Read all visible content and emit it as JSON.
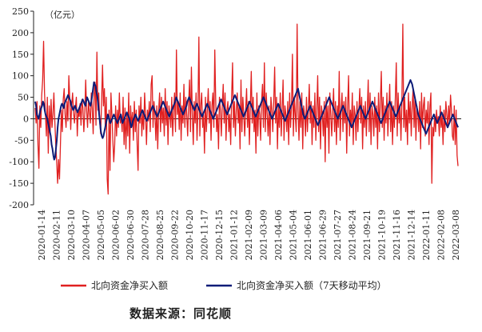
{
  "chart_data": {
    "type": "line",
    "unit_label": "（亿元）",
    "ylim": [
      -200,
      250
    ],
    "y_ticks": [
      250,
      200,
      150,
      100,
      50,
      0,
      -50,
      -100,
      -150,
      -200
    ],
    "x_tick_labels": [
      "2020-01-14",
      "2020-02-11",
      "2020-03-10",
      "2020-04-07",
      "2020-05-05",
      "2020-06-02",
      "2020-06-30",
      "2020-07-28",
      "2020-08-25",
      "2020-09-22",
      "2020-10-20",
      "2020-11-17",
      "2020-12-15",
      "2021-01-12",
      "2021-02-09",
      "2021-03-09",
      "2021-04-06",
      "2021-05-04",
      "2021-06-01",
      "2021-06-29",
      "2021-07-27",
      "2021-08-24",
      "2021-09-21",
      "2021-10-19",
      "2021-11-16",
      "2021-12-14",
      "2022-01-11",
      "2022-02-08",
      "2022-03-08"
    ],
    "grid": false,
    "legend_position": "bottom",
    "series": [
      {
        "name": "北向资金净买入额",
        "color": "#e02020",
        "x_start": "2020-01-14",
        "x_end": "2022-03-08",
        "values": [
          25,
          -10,
          40,
          -60,
          -115,
          30,
          -20,
          55,
          90,
          180,
          60,
          10,
          -40,
          50,
          -80,
          30,
          -30,
          45,
          -20,
          10,
          60,
          -5,
          -60,
          -100,
          -150,
          -95,
          -140,
          -60,
          20,
          -30,
          45,
          70,
          10,
          -20,
          40,
          -5,
          100,
          45,
          -25,
          30,
          60,
          15,
          -10,
          25,
          50,
          -40,
          20,
          5,
          35,
          -15,
          45,
          25,
          -30,
          10,
          90,
          20,
          -20,
          40,
          15,
          -10,
          60,
          25,
          -35,
          55,
          85,
          -15,
          155,
          20,
          60,
          -5,
          -35,
          40,
          125,
          30,
          70,
          -25,
          50,
          -140,
          -175,
          20,
          -120,
          60,
          10,
          -50,
          -100,
          -60,
          30,
          -40,
          20,
          -20,
          60,
          -10,
          5,
          -30,
          50,
          -60,
          25,
          -70,
          10,
          -40,
          60,
          -80,
          30,
          -20,
          15,
          -50,
          40,
          -30,
          20,
          -60,
          -120,
          30,
          -10,
          50,
          -40,
          15,
          -25,
          60,
          10,
          -60,
          20,
          -5,
          40,
          -30,
          80,
          100,
          -20,
          40,
          10,
          -50,
          30,
          -70,
          20,
          60,
          -30,
          50,
          -10,
          25,
          -40,
          70,
          -15,
          40,
          -60,
          30,
          10,
          -20,
          50,
          -40,
          20,
          60,
          -30,
          160,
          10,
          40,
          -25,
          60,
          -50,
          30,
          -10,
          80,
          -20,
          50,
          10,
          -40,
          30,
          90,
          -30,
          120,
          10,
          -60,
          40,
          -10,
          60,
          -50,
          20,
          190,
          -40,
          30,
          60,
          -20,
          10,
          -80,
          50,
          -30,
          20,
          70,
          -10,
          40,
          -50,
          30,
          60,
          -20,
          160,
          40,
          -30,
          10,
          -70,
          50,
          20,
          -40,
          30,
          80,
          -10,
          60,
          -50,
          20,
          40,
          -30,
          10,
          -60,
          50,
          130,
          -20,
          40,
          -40,
          20,
          60,
          -10,
          30,
          -70,
          90,
          -30,
          50,
          10,
          -40,
          20,
          70,
          -20,
          40,
          -60,
          30,
          110,
          -10,
          50,
          -30,
          20,
          -80,
          60,
          -40,
          30,
          10,
          -50,
          40,
          80,
          -20,
          130,
          -30,
          60,
          10,
          -40,
          30,
          -60,
          50,
          20,
          -30,
          40,
          120,
          -10,
          50,
          -70,
          30,
          -20,
          60,
          -40,
          20,
          90,
          -50,
          30,
          10,
          -30,
          40,
          -60,
          60,
          -20,
          30,
          150,
          -40,
          50,
          10,
          -30,
          220,
          20,
          -50,
          40,
          -20,
          60,
          -70,
          30,
          10,
          -40,
          50,
          -30,
          20,
          80,
          -10,
          40,
          -60,
          30,
          -20,
          60,
          -50,
          20,
          100,
          -30,
          50,
          -70,
          30,
          10,
          -40,
          40,
          -100,
          50,
          -20,
          30,
          -80,
          60,
          10,
          -40,
          20,
          70,
          -30,
          40,
          -60,
          30,
          -20,
          110,
          -50,
          20,
          60,
          -30,
          40,
          -10,
          50,
          -80,
          30,
          100,
          -40,
          20,
          -20,
          60,
          -60,
          30,
          10,
          -50,
          40,
          -30,
          20,
          70,
          -10,
          50,
          -70,
          30,
          -20,
          40,
          -40,
          20,
          90,
          -30,
          60,
          -60,
          30,
          10,
          -40,
          50,
          -20,
          30,
          -70,
          60,
          -30,
          40,
          110,
          -20,
          50,
          -50,
          30,
          -10,
          60,
          -40,
          20,
          80,
          -30,
          40,
          -60,
          30,
          -20,
          50,
          130,
          -40,
          60,
          -10,
          30,
          -50,
          40,
          220,
          -20,
          50,
          -30,
          20,
          -60,
          60,
          -10,
          40,
          -40,
          30,
          70,
          -20,
          50,
          -50,
          30,
          10,
          -30,
          40,
          -70,
          60,
          -20,
          30,
          50,
          -40,
          20,
          -10,
          40,
          -60,
          30,
          60,
          -150,
          -20,
          -40,
          10,
          -30,
          20,
          -10,
          5,
          -40,
          30,
          -20,
          10,
          -60,
          20,
          -30,
          40,
          10,
          -20,
          30,
          -10,
          55,
          20,
          -40,
          -50,
          30,
          -60,
          20,
          -85,
          -110
        ]
      },
      {
        "name": "北向资金净买入额（7天移动平均）",
        "color": "#0c1c78",
        "x_start": "2020-01-14",
        "x_end": "2022-03-08",
        "values": [
          40,
          30,
          10,
          5,
          0,
          10,
          20,
          25,
          30,
          40,
          35,
          20,
          10,
          5,
          0,
          -10,
          -20,
          -30,
          -40,
          -60,
          -70,
          -85,
          -95,
          -90,
          -70,
          -50,
          -20,
          0,
          10,
          20,
          30,
          35,
          30,
          25,
          35,
          40,
          45,
          50,
          55,
          50,
          45,
          40,
          30,
          25,
          20,
          25,
          30,
          25,
          20,
          15,
          20,
          25,
          30,
          35,
          40,
          45,
          40,
          35,
          30,
          40,
          50,
          45,
          40,
          35,
          30,
          40,
          55,
          70,
          85,
          80,
          75,
          60,
          50,
          30,
          10,
          -10,
          -30,
          -40,
          -45,
          -40,
          -30,
          -20,
          -10,
          0,
          10,
          5,
          -5,
          -10,
          -5,
          0,
          5,
          10,
          5,
          0,
          -5,
          -10,
          -5,
          0,
          5,
          10,
          0,
          -10,
          -5,
          0,
          5,
          10,
          15,
          10,
          5,
          0,
          -10,
          -20,
          -15,
          -5,
          0,
          5,
          10,
          5,
          0,
          -5,
          0,
          5,
          10,
          15,
          20,
          15,
          10,
          5,
          0,
          -5,
          0,
          5,
          10,
          15,
          20,
          25,
          30,
          25,
          20,
          15,
          10,
          5,
          10,
          15,
          20,
          25,
          30,
          35,
          40,
          35,
          30,
          25,
          20,
          15,
          10,
          5,
          10,
          15,
          20,
          25,
          30,
          35,
          40,
          50,
          45,
          40,
          35,
          30,
          25,
          20,
          15,
          10,
          15,
          20,
          25,
          30,
          40,
          45,
          50,
          45,
          40,
          35,
          30,
          25,
          20,
          25,
          30,
          35,
          30,
          25,
          20,
          15,
          10,
          5,
          10,
          15,
          20,
          25,
          30,
          35,
          30,
          25,
          20,
          15,
          10,
          5,
          0,
          5,
          10,
          15,
          20,
          25,
          30,
          35,
          40,
          45,
          40,
          35,
          30,
          25,
          20,
          15,
          10,
          15,
          20,
          25,
          30,
          35,
          40,
          45,
          50,
          55,
          50,
          45,
          40,
          35,
          30,
          25,
          20,
          15,
          10,
          5,
          10,
          15,
          20,
          25,
          30,
          35,
          40,
          35,
          30,
          25,
          20,
          15,
          10,
          5,
          10,
          15,
          20,
          25,
          30,
          35,
          40,
          45,
          50,
          45,
          40,
          35,
          30,
          25,
          20,
          15,
          10,
          5,
          0,
          5,
          10,
          15,
          20,
          25,
          30,
          35,
          30,
          25,
          20,
          15,
          10,
          5,
          0,
          -5,
          0,
          5,
          10,
          15,
          20,
          25,
          30,
          35,
          40,
          45,
          50,
          55,
          60,
          65,
          70,
          60,
          50,
          40,
          30,
          20,
          10,
          5,
          0,
          5,
          10,
          15,
          20,
          25,
          30,
          25,
          20,
          15,
          10,
          5,
          0,
          -5,
          -10,
          -15,
          -10,
          -5,
          0,
          5,
          10,
          15,
          20,
          25,
          30,
          35,
          40,
          45,
          50,
          45,
          40,
          35,
          30,
          25,
          20,
          15,
          10,
          5,
          0,
          5,
          10,
          15,
          20,
          25,
          30,
          25,
          20,
          15,
          10,
          5,
          0,
          -5,
          -10,
          -15,
          -20,
          -15,
          -10,
          -5,
          0,
          5,
          10,
          15,
          20,
          25,
          30,
          25,
          20,
          15,
          10,
          5,
          0,
          5,
          10,
          15,
          20,
          25,
          30,
          35,
          40,
          35,
          30,
          25,
          20,
          15,
          10,
          5,
          0,
          -5,
          -10,
          -5,
          0,
          5,
          10,
          15,
          20,
          25,
          30,
          35,
          40,
          35,
          30,
          25,
          20,
          15,
          10,
          5,
          10,
          15,
          20,
          25,
          30,
          35,
          40,
          45,
          50,
          55,
          60,
          65,
          70,
          75,
          80,
          85,
          90,
          85,
          80,
          70,
          60,
          50,
          40,
          30,
          20,
          10,
          5,
          0,
          -5,
          -10,
          -15,
          -20,
          -25,
          -30,
          -35,
          -30,
          -25,
          -20,
          -15,
          -10,
          -5,
          0,
          5,
          10,
          5,
          0,
          -5,
          -10,
          -5,
          0,
          5,
          10,
          15,
          10,
          5,
          0,
          -5,
          -10,
          -15,
          -20,
          -15,
          -10,
          -5,
          0,
          5,
          10,
          5,
          0,
          -5,
          -10,
          -15,
          -20
        ]
      }
    ]
  },
  "source": {
    "label": "数据来源：同花顺"
  }
}
